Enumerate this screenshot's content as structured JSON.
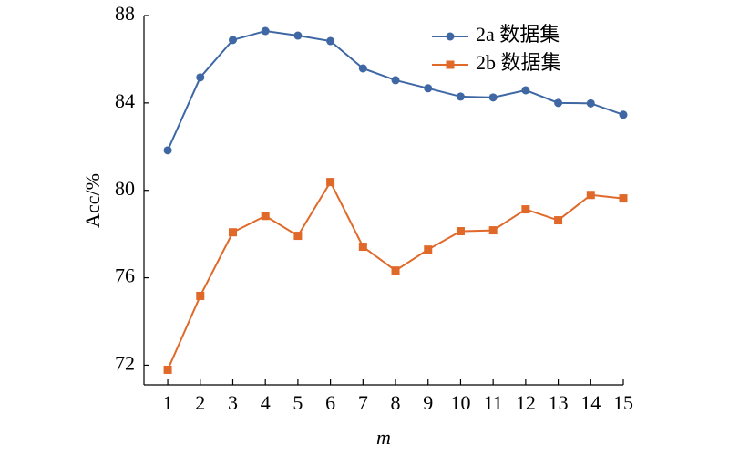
{
  "chart_data": {
    "type": "line",
    "x_label": "m",
    "y_label": "Acc/%",
    "x": [
      1,
      2,
      3,
      4,
      5,
      6,
      7,
      8,
      9,
      10,
      11,
      12,
      13,
      14,
      15
    ],
    "xlim": [
      0.27,
      15
    ],
    "xticks": [
      1,
      2,
      3,
      4,
      5,
      6,
      7,
      8,
      9,
      10,
      11,
      12,
      13,
      14,
      15
    ],
    "ylim": [
      71.1,
      88
    ],
    "yticks": [
      72,
      76,
      80,
      84,
      88
    ],
    "legend": "upper right",
    "series": [
      {
        "name": "2a 数据集",
        "color": "#3e67a3",
        "marker": "circle",
        "values": [
          81.83,
          85.17,
          86.88,
          87.29,
          87.08,
          86.83,
          85.58,
          85.04,
          84.67,
          84.29,
          84.25,
          84.58,
          84.0,
          83.98,
          83.46
        ]
      },
      {
        "name": "2b 数据集",
        "color": "#e0692a",
        "marker": "square",
        "values": [
          71.79,
          75.17,
          78.08,
          78.83,
          77.92,
          80.38,
          77.42,
          76.33,
          77.29,
          78.13,
          78.17,
          79.13,
          78.63,
          79.79,
          79.63
        ]
      }
    ]
  }
}
